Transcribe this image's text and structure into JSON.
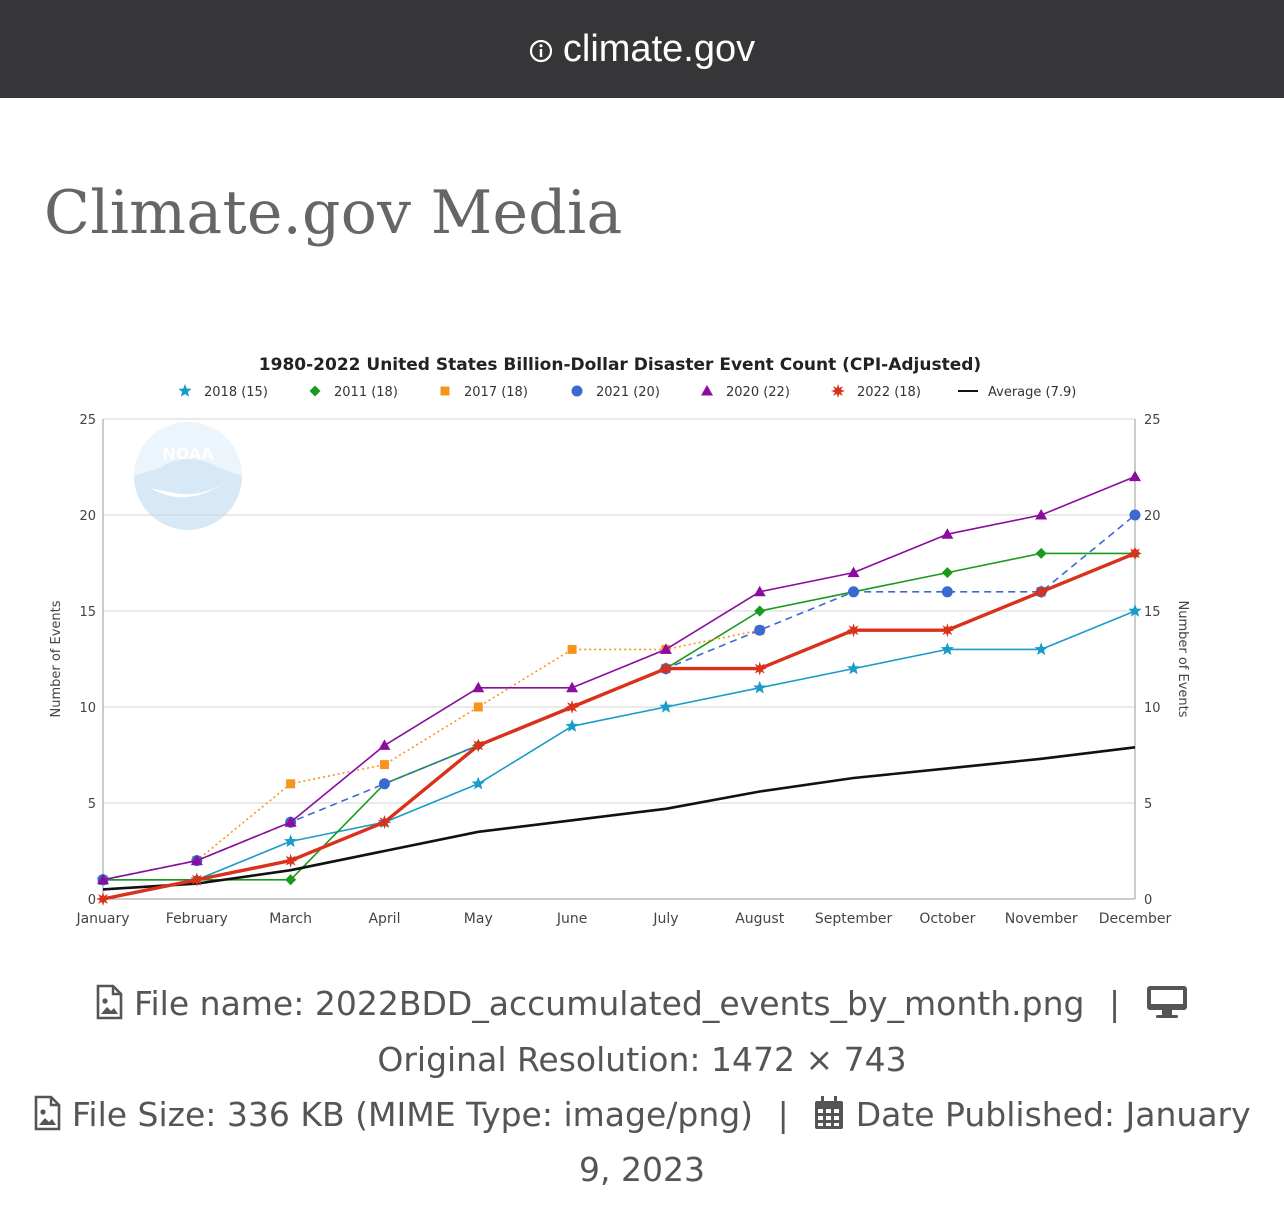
{
  "browser": {
    "url": "climate.gov"
  },
  "page": {
    "title": "Climate.gov Media"
  },
  "figure": {
    "logo_text": "NOAA"
  },
  "chart_data": {
    "type": "line",
    "title": "1980-2022 United States Billion-Dollar Disaster Event Count (CPI-Adjusted)",
    "ylabel": "Number of Events",
    "ylabel_right": "Number of Events",
    "ylim": [
      0,
      25
    ],
    "yticks": [
      0,
      5,
      10,
      15,
      20,
      25
    ],
    "grid": true,
    "legend_position": "top",
    "categories": [
      "January",
      "February",
      "March",
      "April",
      "May",
      "June",
      "July",
      "August",
      "September",
      "October",
      "November",
      "December"
    ],
    "series": [
      {
        "name": "2018 (15)",
        "color": "#1a9bc8",
        "marker": "star",
        "dash": "solid",
        "width": 1.6,
        "values": [
          1,
          1,
          3,
          4,
          6,
          9,
          10,
          11,
          12,
          13,
          13,
          15
        ]
      },
      {
        "name": "2011 (18)",
        "color": "#1a9a1a",
        "marker": "diamond",
        "dash": "solid",
        "width": 1.6,
        "values": [
          1,
          1,
          1,
          6,
          8,
          null,
          12,
          15,
          16,
          17,
          18,
          18
        ]
      },
      {
        "name": "2017 (18)",
        "color": "#f7941d",
        "marker": "square",
        "dash": "dotted",
        "width": 1.6,
        "values": [
          1,
          2,
          6,
          7,
          10,
          13,
          13,
          14,
          null,
          null,
          null,
          null
        ]
      },
      {
        "name": "2021 (20)",
        "color": "#3a6ad0",
        "marker": "circle",
        "dash": "dashed",
        "width": 1.6,
        "values": [
          1,
          2,
          4,
          6,
          null,
          null,
          12,
          14,
          16,
          16,
          16,
          20
        ]
      },
      {
        "name": "2020 (22)",
        "color": "#8b0c9e",
        "marker": "triangle",
        "dash": "solid",
        "width": 1.6,
        "values": [
          1,
          2,
          4,
          8,
          11,
          11,
          13,
          16,
          17,
          19,
          20,
          22
        ]
      },
      {
        "name": "2022 (18)",
        "color": "#d9311b",
        "marker": "burst",
        "dash": "solid",
        "width": 3.4,
        "values": [
          0,
          1,
          2,
          4,
          8,
          10,
          12,
          12,
          14,
          14,
          16,
          18
        ]
      },
      {
        "name": "Average (7.9)",
        "color": "#111111",
        "marker": "none",
        "dash": "solid",
        "width": 2.6,
        "values": [
          0.5,
          0.8,
          1.5,
          2.5,
          3.5,
          4.1,
          4.7,
          5.6,
          6.3,
          6.8,
          7.3,
          7.9
        ]
      }
    ]
  },
  "file_info": {
    "file_name_label": "File name:",
    "file_name": "2022BDD_accumulated_events_by_month.png",
    "separator": "|",
    "resolution_label": "Original Resolution:",
    "resolution": "1472 × 743",
    "size_label": "File Size:",
    "size": "336 KB (MIME Type: image/png)",
    "date_label": "Date Published:",
    "date_part1": "January",
    "date_part2": "9, 2023"
  },
  "icons": {
    "info": "info-circle-icon",
    "file_image": "file-image-icon",
    "desktop": "desktop-icon",
    "calendar": "calendar-icon"
  }
}
